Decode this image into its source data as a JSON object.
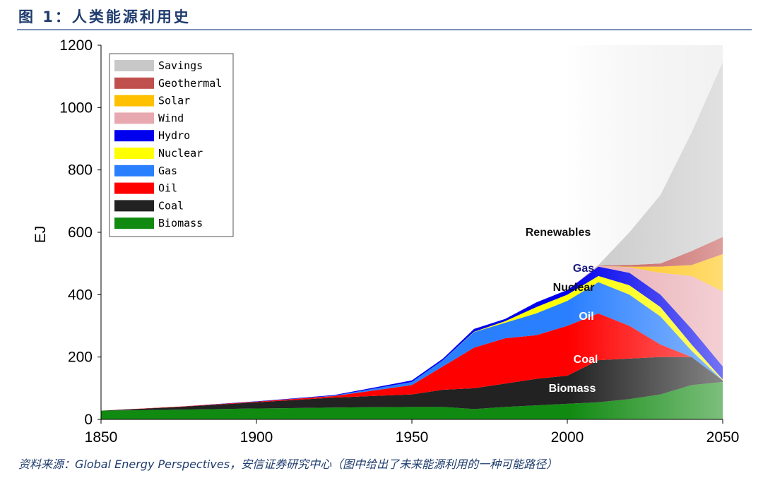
{
  "header": {
    "title": "图 1：人类能源利用史"
  },
  "footer": {
    "source": "资料来源：Global Energy Perspectives，安信证券研究中心（图中给出了未来能源利用的一种可能路径）"
  },
  "chart_data": {
    "type": "area",
    "stacked": true,
    "title": "",
    "xlabel": "",
    "ylabel": "EJ",
    "xlim": [
      1850,
      2050
    ],
    "ylim": [
      0,
      1200
    ],
    "xticks": [
      1850,
      1900,
      1950,
      2000,
      2050
    ],
    "yticks": [
      0,
      200,
      400,
      600,
      800,
      1000,
      1200
    ],
    "legend_position": "top-left",
    "x": [
      1850,
      1875,
      1900,
      1925,
      1950,
      1960,
      1970,
      1980,
      1990,
      2000,
      2010,
      2020,
      2030,
      2040,
      2050
    ],
    "series": [
      {
        "name": "Biomass",
        "color": "#118a11",
        "values": [
          28,
          31,
          35,
          38,
          40,
          40,
          33,
          40,
          45,
          50,
          55,
          65,
          80,
          110,
          120
        ]
      },
      {
        "name": "Coal",
        "color": "#222222",
        "values": [
          0,
          9,
          20,
          32,
          40,
          55,
          67,
          75,
          85,
          90,
          135,
          130,
          120,
          90,
          5
        ]
      },
      {
        "name": "Oil",
        "color": "#ff0000",
        "values": [
          0,
          1,
          2,
          5,
          30,
          75,
          130,
          145,
          140,
          160,
          150,
          105,
          40,
          0,
          0
        ]
      },
      {
        "name": "Gas",
        "color": "#2a7fff",
        "values": [
          0,
          0,
          0,
          1,
          10,
          20,
          50,
          50,
          70,
          80,
          100,
          100,
          90,
          20,
          0
        ]
      },
      {
        "name": "Nuclear",
        "color": "#ffff00",
        "values": [
          0,
          0,
          0,
          0,
          0,
          0,
          1,
          5,
          20,
          20,
          20,
          30,
          30,
          20,
          3
        ]
      },
      {
        "name": "Hydro",
        "color": "#0000ee",
        "values": [
          0,
          0,
          1,
          2,
          5,
          5,
          9,
          7,
          15,
          15,
          30,
          40,
          40,
          50,
          42
        ]
      },
      {
        "name": "Wind",
        "color": "#e8a8b0",
        "values": [
          0,
          0,
          0,
          0,
          0,
          0,
          0,
          0,
          0,
          0,
          2,
          18,
          70,
          170,
          240
        ]
      },
      {
        "name": "Solar",
        "color": "#ffc000",
        "values": [
          0,
          0,
          0,
          0,
          0,
          0,
          0,
          0,
          0,
          0,
          0,
          2,
          20,
          35,
          120
        ]
      },
      {
        "name": "Geothermal",
        "color": "#c0504d",
        "values": [
          0,
          0,
          0,
          0,
          0,
          0,
          0,
          0,
          0,
          0,
          1,
          5,
          10,
          45,
          55
        ]
      },
      {
        "name": "Savings",
        "color": "#c8c8c8",
        "values": [
          0,
          0,
          0,
          0,
          0,
          0,
          0,
          0,
          0,
          0,
          2,
          105,
          220,
          380,
          560
        ]
      }
    ],
    "annotations": [
      "Renewables",
      "Gas",
      "Nuclear",
      "Oil",
      "Coal",
      "Biomass"
    ]
  }
}
